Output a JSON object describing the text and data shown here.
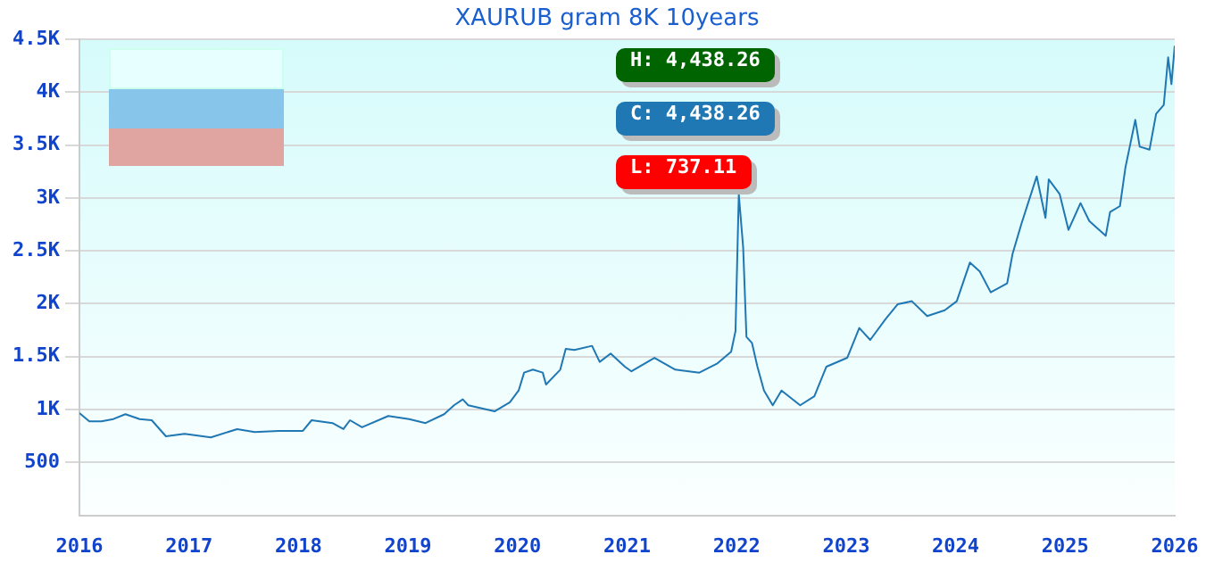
{
  "chart_data": {
    "type": "line",
    "title": "XAURUB gram 8K 10years",
    "annotations": [
      "H: 4,438.26",
      "C: 4,438.26",
      "L: 737.11"
    ],
    "x": [
      2016.0,
      2016.09,
      2016.2,
      2016.31,
      2016.42,
      2016.55,
      2016.66,
      2016.79,
      2016.96,
      2017.2,
      2017.44,
      2017.6,
      2017.82,
      2018.04,
      2018.12,
      2018.31,
      2018.41,
      2018.47,
      2018.58,
      2018.82,
      2019.01,
      2019.16,
      2019.33,
      2019.42,
      2019.5,
      2019.55,
      2019.79,
      2019.93,
      2020.01,
      2020.06,
      2020.14,
      2020.23,
      2020.26,
      2020.39,
      2020.44,
      2020.52,
      2020.68,
      2020.75,
      2020.85,
      2020.98,
      2021.04,
      2021.25,
      2021.44,
      2021.66,
      2021.82,
      2021.95,
      2021.99,
      2022.02,
      2022.06,
      2022.09,
      2022.14,
      2022.19,
      2022.25,
      2022.33,
      2022.41,
      2022.58,
      2022.71,
      2022.82,
      2023.01,
      2023.12,
      2023.22,
      2023.36,
      2023.47,
      2023.6,
      2023.74,
      2023.9,
      2024.01,
      2024.13,
      2024.22,
      2024.32,
      2024.47,
      2024.52,
      2024.6,
      2024.74,
      2024.82,
      2024.85,
      2024.95,
      2025.03,
      2025.14,
      2025.22,
      2025.37,
      2025.41,
      2025.5,
      2025.55,
      2025.64,
      2025.68,
      2025.77,
      2025.83,
      2025.9,
      2025.94,
      2025.97,
      2026.0
    ],
    "series": [
      {
        "color": "#1f77b4",
        "values": [
          966,
          889,
          889,
          910,
          956,
          910,
          899,
          747,
          770,
          737,
          815,
          787,
          798,
          798,
          899,
          872,
          815,
          899,
          832,
          939,
          910,
          872,
          956,
          1040,
          1096,
          1040,
          983,
          1068,
          1180,
          1349,
          1377,
          1349,
          1236,
          1377,
          1573,
          1563,
          1602,
          1450,
          1529,
          1405,
          1361,
          1489,
          1377,
          1349,
          1433,
          1546,
          1742,
          3035,
          2530,
          1686,
          1630,
          1405,
          1180,
          1040,
          1180,
          1040,
          1125,
          1405,
          1489,
          1771,
          1658,
          1855,
          1995,
          2024,
          1884,
          1939,
          2024,
          2389,
          2305,
          2108,
          2192,
          2474,
          2754,
          3204,
          2811,
          3175,
          3035,
          2698,
          2951,
          2782,
          2642,
          2867,
          2923,
          3288,
          3738,
          3485,
          3457,
          3794,
          3879,
          4329,
          4076,
          4438
        ]
      }
    ],
    "xlim": [
      2016,
      2026
    ],
    "xticks": [
      2016,
      2017,
      2018,
      2019,
      2020,
      2021,
      2022,
      2023,
      2024,
      2025,
      2026
    ],
    "ylim": [
      0,
      4500
    ],
    "yticks": [
      {
        "value": 500,
        "label": "500"
      },
      {
        "value": 1000,
        "label": "1K"
      },
      {
        "value": 1500,
        "label": "1.5K"
      },
      {
        "value": 2000,
        "label": "2K"
      },
      {
        "value": 2500,
        "label": "2.5K"
      },
      {
        "value": 3000,
        "label": "3K"
      },
      {
        "value": 3500,
        "label": "3.5K"
      },
      {
        "value": 4000,
        "label": "4K"
      },
      {
        "value": 4500,
        "label": "4.5K"
      }
    ],
    "grid": "y",
    "legend": false,
    "marker": "none",
    "line_style": "solid"
  }
}
